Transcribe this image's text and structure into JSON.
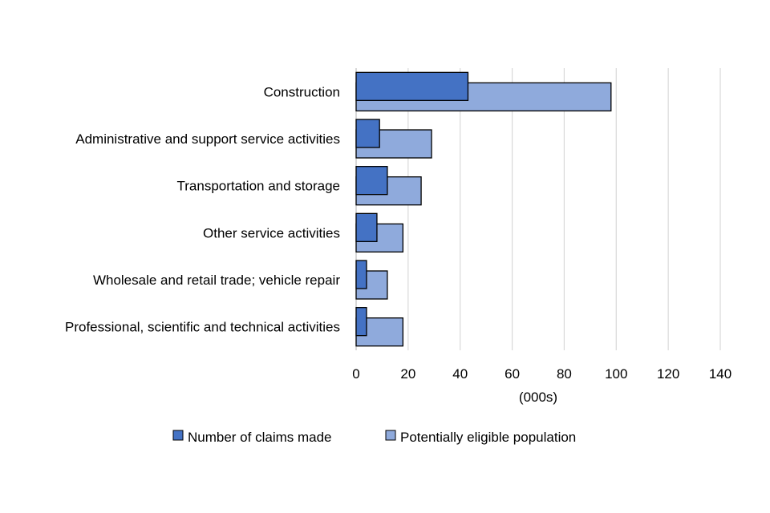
{
  "chart_data": {
    "type": "bar",
    "orientation": "horizontal",
    "title": "",
    "xlabel": "(000s)",
    "ylabel": "",
    "xlim": [
      0,
      140
    ],
    "x_ticks": [
      0,
      20,
      40,
      60,
      80,
      100,
      120,
      140
    ],
    "grid": true,
    "legend_position": "bottom",
    "categories": [
      "Construction",
      "Administrative and support service activities",
      "Transportation and storage",
      "Other service activities",
      "Wholesale and retail trade; vehicle repair",
      "Professional, scientific and technical activities"
    ],
    "series": [
      {
        "name": "Number of claims made",
        "color": "#4472c4",
        "values": [
          43,
          9,
          12,
          8,
          4,
          4
        ]
      },
      {
        "name": "Potentially eligible population",
        "color": "#8faadc",
        "values": [
          98,
          29,
          25,
          18,
          12,
          18
        ]
      }
    ]
  }
}
